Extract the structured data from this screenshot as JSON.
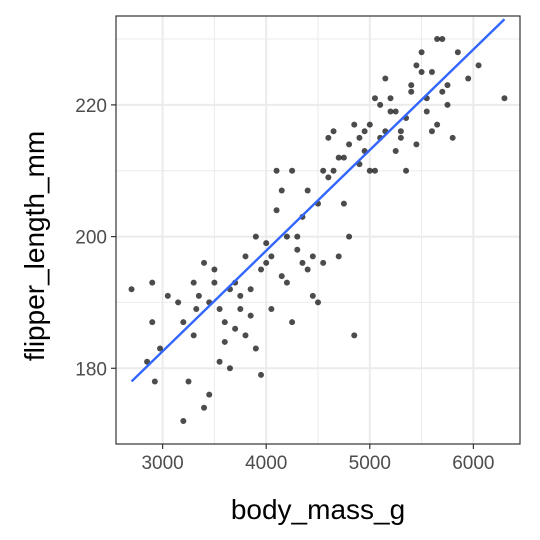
{
  "chart_data": {
    "type": "scatter",
    "title": "",
    "xlabel": "body_mass_g",
    "ylabel": "flipper_length_mm",
    "xlim": [
      2550,
      6450
    ],
    "ylim": [
      168.5,
      233.5
    ],
    "x_ticks": [
      3000,
      4000,
      5000,
      6000
    ],
    "y_ticks": [
      180,
      200,
      220
    ],
    "x_minor_ticks": [
      3500,
      4500,
      5500
    ],
    "y_minor_ticks": [
      190,
      210,
      230
    ],
    "grid": true,
    "legend": "none",
    "colors": {
      "points": "#000000",
      "fit_line": "#3366ff",
      "grid": "#ebebeb",
      "panel_border": "#333333"
    },
    "series": [
      {
        "points": [
          [
            2700,
            192
          ],
          [
            2850,
            181
          ],
          [
            2900,
            187
          ],
          [
            2900,
            193
          ],
          [
            2925,
            178
          ],
          [
            2975,
            183
          ],
          [
            3050,
            191
          ],
          [
            3150,
            190
          ],
          [
            3200,
            172
          ],
          [
            3250,
            178
          ],
          [
            3300,
            185
          ],
          [
            3325,
            189
          ],
          [
            3400,
            174
          ],
          [
            3450,
            176
          ],
          [
            3500,
            195
          ],
          [
            3550,
            189
          ],
          [
            3600,
            184
          ],
          [
            3650,
            180
          ],
          [
            3700,
            186
          ],
          [
            3750,
            189
          ],
          [
            3800,
            185
          ],
          [
            3850,
            192
          ],
          [
            3900,
            183
          ],
          [
            3950,
            179
          ],
          [
            4000,
            199
          ],
          [
            4050,
            197
          ],
          [
            4100,
            210
          ],
          [
            4150,
            207
          ],
          [
            4200,
            193
          ],
          [
            4250,
            187
          ],
          [
            4300,
            200
          ],
          [
            4350,
            203
          ],
          [
            4400,
            195
          ],
          [
            4450,
            191
          ],
          [
            4500,
            190
          ],
          [
            4550,
            196
          ],
          [
            4600,
            215
          ],
          [
            4650,
            210
          ],
          [
            4700,
            197
          ],
          [
            4750,
            205
          ],
          [
            4800,
            200
          ],
          [
            4850,
            185
          ],
          [
            4900,
            211
          ],
          [
            4950,
            213
          ],
          [
            5000,
            217
          ],
          [
            5050,
            210
          ],
          [
            5100,
            220
          ],
          [
            5150,
            216
          ],
          [
            5200,
            221
          ],
          [
            5250,
            213
          ],
          [
            5300,
            215
          ],
          [
            5350,
            218
          ],
          [
            5400,
            222
          ],
          [
            5450,
            214
          ],
          [
            5500,
            225
          ],
          [
            5550,
            219
          ],
          [
            5600,
            216
          ],
          [
            5650,
            230
          ],
          [
            5700,
            222
          ],
          [
            5750,
            220
          ],
          [
            5800,
            215
          ],
          [
            5850,
            228
          ],
          [
            5950,
            224
          ],
          [
            6050,
            226
          ],
          [
            6300,
            221
          ],
          [
            3300,
            193
          ],
          [
            3400,
            196
          ],
          [
            3450,
            190
          ],
          [
            3500,
            193
          ],
          [
            3600,
            187
          ],
          [
            3700,
            193
          ],
          [
            3800,
            197
          ],
          [
            3900,
            200
          ],
          [
            4000,
            196
          ],
          [
            4100,
            204
          ],
          [
            4200,
            200
          ],
          [
            4300,
            198
          ],
          [
            4400,
            207
          ],
          [
            4500,
            205
          ],
          [
            4600,
            209
          ],
          [
            4700,
            212
          ],
          [
            4800,
            214
          ],
          [
            4900,
            215
          ],
          [
            5000,
            210
          ],
          [
            5100,
            215
          ],
          [
            5200,
            219
          ],
          [
            5300,
            216
          ],
          [
            5400,
            223
          ],
          [
            5500,
            228
          ],
          [
            5600,
            225
          ],
          [
            5700,
            230
          ],
          [
            3200,
            187
          ],
          [
            3350,
            191
          ],
          [
            3550,
            181
          ],
          [
            3650,
            192
          ],
          [
            3750,
            191
          ],
          [
            3850,
            188
          ],
          [
            3950,
            195
          ],
          [
            4050,
            189
          ],
          [
            4150,
            194
          ],
          [
            4250,
            210
          ],
          [
            4350,
            196
          ],
          [
            4450,
            197
          ],
          [
            4550,
            210
          ],
          [
            4650,
            216
          ],
          [
            4750,
            212
          ],
          [
            4850,
            217
          ],
          [
            4950,
            216
          ],
          [
            5050,
            221
          ],
          [
            5150,
            224
          ],
          [
            5250,
            219
          ],
          [
            5350,
            210
          ],
          [
            5450,
            226
          ],
          [
            5550,
            221
          ],
          [
            5650,
            217
          ],
          [
            5750,
            223
          ]
        ]
      }
    ],
    "fit_line": {
      "x": [
        2700,
        6300
      ],
      "y": [
        178,
        233
      ]
    }
  }
}
